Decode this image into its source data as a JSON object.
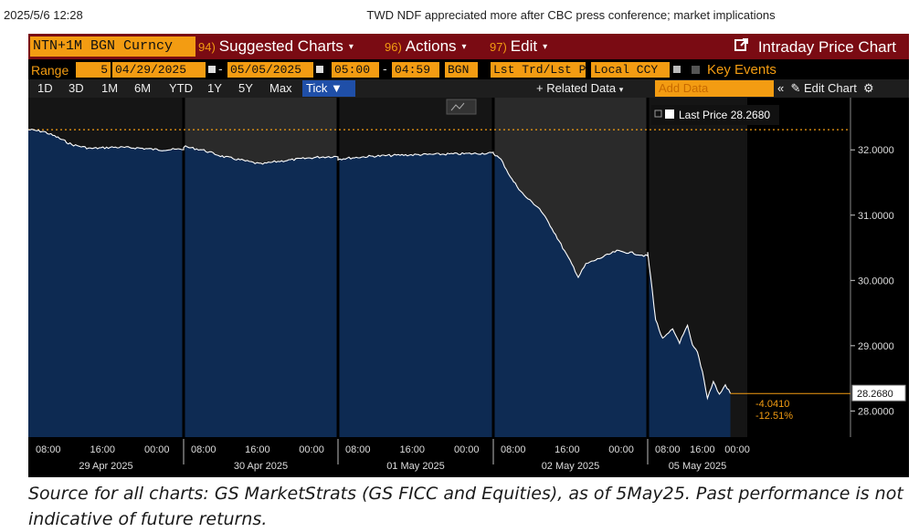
{
  "page": {
    "timestamp": "2025/5/6 12:28",
    "title": "TWD NDF appreciated more after CBC press conference; market implications",
    "caption": "Source for all charts: GS MarketStrats (GS FICC and Equities), as of 5May25. Past performance is not indicative of future returns."
  },
  "toolbar": {
    "ticker": "NTN+1M BGN Curncy",
    "menus": [
      {
        "num": "94)",
        "label": "Suggested Charts"
      },
      {
        "num": "96)",
        "label": "Actions"
      },
      {
        "num": "97)",
        "label": "Edit"
      }
    ],
    "window_title": "Intraday Price Chart",
    "window_icon": "external-link-icon"
  },
  "params": {
    "range_label": "Range",
    "range_value": "5",
    "start_date": "04/29/2025",
    "end_date": "05/05/2025",
    "start_time": "05:00",
    "end_time": "04:59",
    "source": "BGN",
    "field": "Lst Trd/Lst P:",
    "currency": "Local CCY",
    "key_events": "Key Events"
  },
  "periods": {
    "tabs": [
      "1D",
      "3D",
      "1M",
      "6M",
      "YTD",
      "1Y",
      "5Y",
      "Max"
    ],
    "selected": "Tick",
    "related_data": "+ Related Data",
    "add_data_placeholder": "Add Data",
    "collapse_glyph": "«",
    "edit_chart": "Edit Chart"
  },
  "colors": {
    "header_red": "#7a0b13",
    "orange": "#f39c12",
    "fill_blue": "#0d2b55",
    "line": "#ffffff",
    "selection_blue": "#1f4fa8"
  },
  "chart_data": {
    "type": "area",
    "legend": "Last Price 28.2680",
    "last_value": "28.2680",
    "change_abs": "-4.0410",
    "change_pct": "-12.51%",
    "reference_level": 32.309,
    "ylim": [
      27.6,
      32.8
    ],
    "yticks": [
      {
        "label": "32.0000",
        "value": 32.0
      },
      {
        "label": "31.0000",
        "value": 31.0
      },
      {
        "label": "30.0000",
        "value": 30.0
      },
      {
        "label": "29.0000",
        "value": 29.0
      },
      {
        "label": "28.0000",
        "value": 28.0
      }
    ],
    "x_time_labels": [
      "08:00",
      "16:00",
      "00:00"
    ],
    "x_day_labels": [
      "29 Apr 2025",
      "30 Apr 2025",
      "01 May 2025",
      "02 May 2025",
      "05 May 2025"
    ],
    "sessions": [
      {
        "date": "29 Apr 2025",
        "points": [
          [
            0,
            32.31
          ],
          [
            0.1,
            32.28
          ],
          [
            0.18,
            32.2
          ],
          [
            0.28,
            32.08
          ],
          [
            0.4,
            32.02
          ],
          [
            0.55,
            32.04
          ],
          [
            0.7,
            32.03
          ],
          [
            0.85,
            32.0
          ],
          [
            1.0,
            32.01
          ]
        ]
      },
      {
        "date": "30 Apr 2025",
        "points": [
          [
            0,
            32.05
          ],
          [
            0.12,
            32.0
          ],
          [
            0.25,
            31.9
          ],
          [
            0.4,
            31.83
          ],
          [
            0.5,
            31.78
          ],
          [
            0.6,
            31.82
          ],
          [
            0.75,
            31.86
          ],
          [
            0.88,
            31.89
          ],
          [
            1.0,
            31.9
          ]
        ]
      },
      {
        "date": "01 May 2025",
        "points": [
          [
            0,
            31.86
          ],
          [
            0.2,
            31.9
          ],
          [
            0.4,
            31.92
          ],
          [
            0.6,
            31.93
          ],
          [
            0.8,
            31.94
          ],
          [
            1.0,
            31.95
          ]
        ]
      },
      {
        "date": "02 May 2025",
        "points": [
          [
            0,
            31.95
          ],
          [
            0.05,
            31.85
          ],
          [
            0.12,
            31.55
          ],
          [
            0.2,
            31.3
          ],
          [
            0.3,
            31.1
          ],
          [
            0.38,
            30.8
          ],
          [
            0.45,
            30.5
          ],
          [
            0.52,
            30.2
          ],
          [
            0.55,
            30.05
          ],
          [
            0.6,
            30.25
          ],
          [
            0.7,
            30.35
          ],
          [
            0.8,
            30.45
          ],
          [
            0.9,
            30.42
          ],
          [
            1.0,
            30.37
          ]
        ]
      },
      {
        "date": "05 May 2025",
        "points": [
          [
            0,
            30.42
          ],
          [
            0.03,
            30.05
          ],
          [
            0.08,
            29.4
          ],
          [
            0.15,
            29.1
          ],
          [
            0.25,
            29.25
          ],
          [
            0.32,
            29.05
          ],
          [
            0.4,
            29.3
          ],
          [
            0.45,
            29.0
          ],
          [
            0.5,
            28.9
          ],
          [
            0.55,
            28.6
          ],
          [
            0.6,
            28.2
          ],
          [
            0.66,
            28.45
          ],
          [
            0.72,
            28.25
          ],
          [
            0.78,
            28.4
          ],
          [
            0.83,
            28.27
          ]
        ]
      }
    ]
  }
}
